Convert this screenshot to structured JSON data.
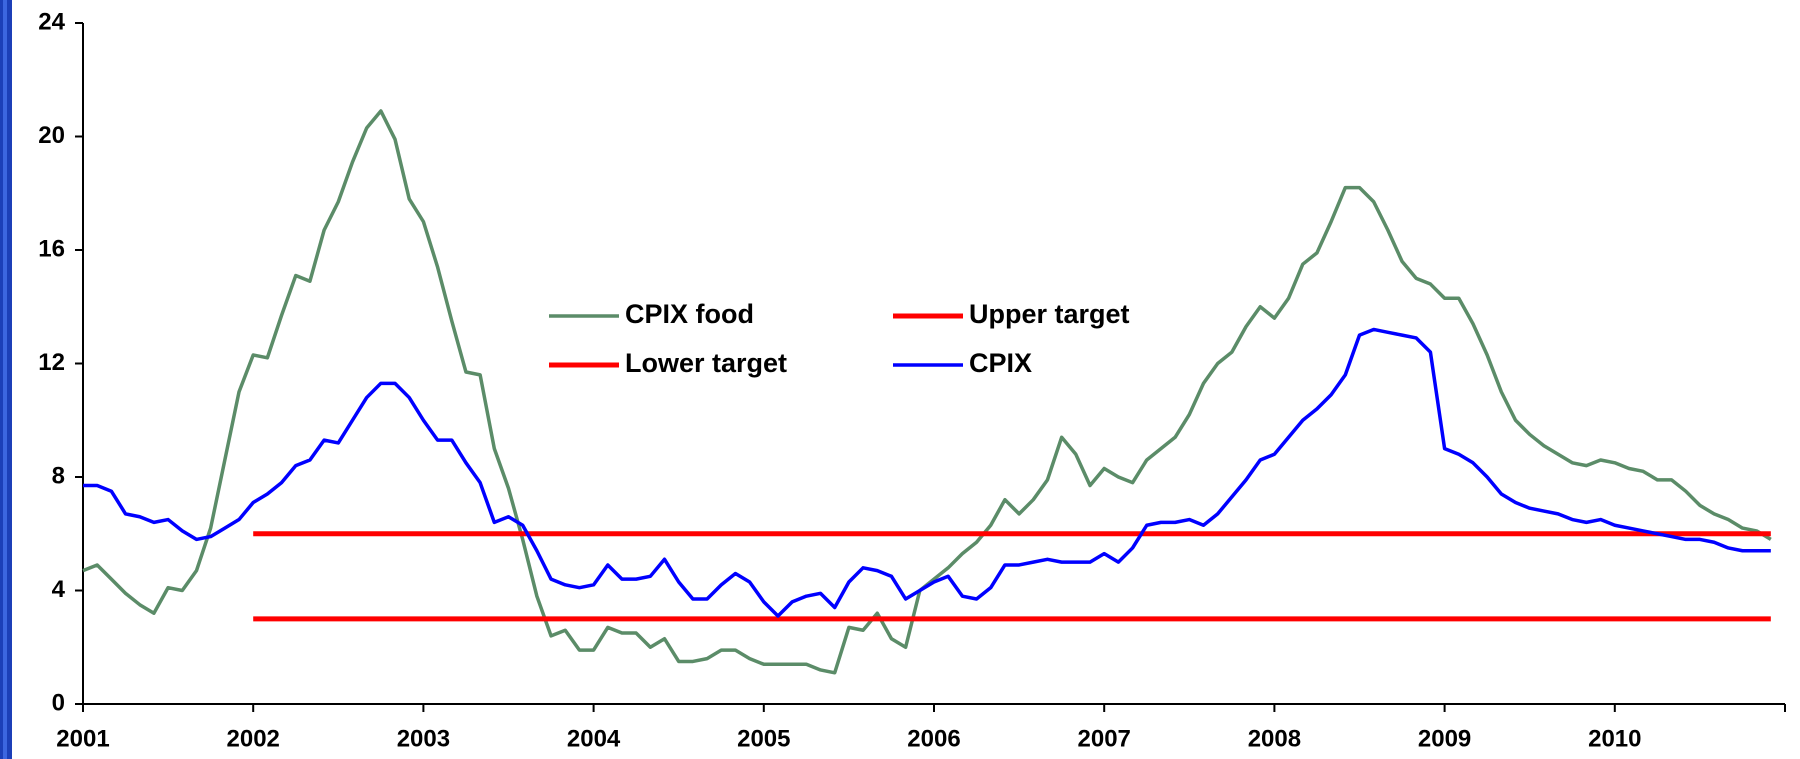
{
  "chart_data": {
    "type": "line",
    "categories": [
      "2001",
      null,
      null,
      null,
      null,
      null,
      null,
      null,
      null,
      null,
      null,
      null,
      "2002",
      null,
      null,
      null,
      null,
      null,
      null,
      null,
      null,
      null,
      null,
      null,
      "2003",
      null,
      null,
      null,
      null,
      null,
      null,
      null,
      null,
      null,
      null,
      null,
      "2004",
      null,
      null,
      null,
      null,
      null,
      null,
      null,
      null,
      null,
      null,
      null,
      "2005",
      null,
      null,
      null,
      null,
      null,
      null,
      null,
      null,
      null,
      null,
      null,
      "2006",
      null,
      null,
      null,
      null,
      null,
      null,
      null,
      null,
      null,
      null,
      null,
      "2007",
      null,
      null,
      null,
      null,
      null,
      null,
      null,
      null,
      null,
      null,
      null,
      "2008",
      null,
      null,
      null,
      null,
      null,
      null,
      null,
      null,
      null,
      null,
      null,
      "2009",
      null,
      null,
      null,
      null,
      null,
      null,
      null,
      null,
      null,
      null,
      null,
      "2010",
      null,
      null,
      null,
      null,
      null,
      null,
      null,
      null,
      null,
      null,
      null
    ],
    "series": [
      {
        "name": "CPIX food",
        "color": "#5b8c68",
        "values": [
          4.7,
          4.9,
          4.4,
          3.9,
          3.5,
          3.2,
          4.1,
          4.0,
          4.7,
          6.2,
          8.6,
          11.0,
          12.3,
          12.2,
          13.7,
          15.1,
          14.9,
          16.7,
          17.7,
          19.1,
          20.3,
          20.9,
          19.9,
          17.8,
          17.0,
          15.4,
          13.5,
          11.7,
          11.6,
          9.0,
          7.6,
          5.8,
          3.8,
          2.4,
          2.6,
          1.9,
          1.9,
          2.7,
          2.5,
          2.5,
          2.0,
          2.3,
          1.5,
          1.5,
          1.6,
          1.9,
          1.9,
          1.6,
          1.4,
          1.4,
          1.4,
          1.4,
          1.2,
          1.1,
          2.7,
          2.6,
          3.2,
          2.3,
          2.0,
          4.0,
          4.4,
          4.8,
          5.3,
          5.7,
          6.3,
          7.2,
          6.7,
          7.2,
          7.9,
          9.4,
          8.8,
          7.7,
          8.3,
          8.0,
          7.8,
          8.6,
          9.0,
          9.4,
          10.2,
          11.3,
          12.0,
          12.4,
          13.3,
          14.0,
          13.6,
          14.3,
          15.5,
          15.9,
          17.0,
          18.2,
          18.2,
          17.7,
          16.7,
          15.6,
          15.0,
          14.8,
          14.3,
          14.3,
          13.4,
          12.3,
          11.0,
          10.0,
          9.5,
          9.1,
          8.8,
          8.5,
          8.4,
          8.6,
          8.5,
          8.3,
          8.2,
          7.9,
          7.9,
          7.5,
          7.0,
          6.7,
          6.5,
          6.2,
          6.1,
          5.8
        ]
      },
      {
        "name": "Upper target",
        "color": "#ff0000",
        "values": [
          null,
          null,
          null,
          null,
          null,
          null,
          null,
          null,
          null,
          null,
          null,
          null,
          6,
          6,
          6,
          6,
          6,
          6,
          6,
          6,
          6,
          6,
          6,
          6,
          6,
          6,
          6,
          6,
          6,
          6,
          6,
          6,
          6,
          6,
          6,
          6,
          6,
          6,
          6,
          6,
          6,
          6,
          6,
          6,
          6,
          6,
          6,
          6,
          6,
          6,
          6,
          6,
          6,
          6,
          6,
          6,
          6,
          6,
          6,
          6,
          6,
          6,
          6,
          6,
          6,
          6,
          6,
          6,
          6,
          6,
          6,
          6,
          6,
          6,
          6,
          6,
          6,
          6,
          6,
          6,
          6,
          6,
          6,
          6,
          6,
          6,
          6,
          6,
          6,
          6,
          6,
          6,
          6,
          6,
          6,
          6,
          6,
          6,
          6,
          6,
          6,
          6,
          6,
          6,
          6,
          6,
          6,
          6,
          6,
          6,
          6,
          6,
          6,
          6,
          6,
          6,
          6,
          6,
          6,
          6
        ]
      },
      {
        "name": "Lower target",
        "color": "#ff0000",
        "values": [
          null,
          null,
          null,
          null,
          null,
          null,
          null,
          null,
          null,
          null,
          null,
          null,
          3,
          3,
          3,
          3,
          3,
          3,
          3,
          3,
          3,
          3,
          3,
          3,
          3,
          3,
          3,
          3,
          3,
          3,
          3,
          3,
          3,
          3,
          3,
          3,
          3,
          3,
          3,
          3,
          3,
          3,
          3,
          3,
          3,
          3,
          3,
          3,
          3,
          3,
          3,
          3,
          3,
          3,
          3,
          3,
          3,
          3,
          3,
          3,
          3,
          3,
          3,
          3,
          3,
          3,
          3,
          3,
          3,
          3,
          3,
          3,
          3,
          3,
          3,
          3,
          3,
          3,
          3,
          3,
          3,
          3,
          3,
          3,
          3,
          3,
          3,
          3,
          3,
          3,
          3,
          3,
          3,
          3,
          3,
          3,
          3,
          3,
          3,
          3,
          3,
          3,
          3,
          3,
          3,
          3,
          3,
          3,
          3,
          3,
          3,
          3,
          3,
          3,
          3,
          3,
          3,
          3,
          3,
          3
        ]
      },
      {
        "name": "CPIX",
        "color": "#0000ff",
        "values": [
          7.7,
          7.7,
          7.5,
          6.7,
          6.6,
          6.4,
          6.5,
          6.1,
          5.8,
          5.9,
          6.2,
          6.5,
          7.1,
          7.4,
          7.8,
          8.4,
          8.6,
          9.3,
          9.2,
          10.0,
          10.8,
          11.3,
          11.3,
          10.8,
          10.0,
          9.3,
          9.3,
          8.5,
          7.8,
          6.4,
          6.6,
          6.3,
          5.4,
          4.4,
          4.2,
          4.1,
          4.2,
          4.9,
          4.4,
          4.4,
          4.5,
          5.1,
          4.3,
          3.7,
          3.7,
          4.2,
          4.6,
          4.3,
          3.6,
          3.1,
          3.6,
          3.8,
          3.9,
          3.4,
          4.3,
          4.8,
          4.7,
          4.5,
          3.7,
          4.0,
          4.3,
          4.5,
          3.8,
          3.7,
          4.1,
          4.9,
          4.9,
          5.0,
          5.1,
          5.0,
          5.0,
          5.0,
          5.3,
          5.0,
          5.5,
          6.3,
          6.4,
          6.4,
          6.5,
          6.3,
          6.7,
          7.3,
          7.9,
          8.6,
          8.8,
          9.4,
          10.0,
          10.4,
          10.9,
          11.6,
          13.0,
          13.2,
          13.1,
          13.0,
          12.9,
          12.4,
          9.0,
          8.8,
          8.5,
          8.0,
          7.4,
          7.1,
          6.9,
          6.8,
          6.7,
          6.5,
          6.4,
          6.5,
          6.3,
          6.2,
          6.1,
          6.0,
          5.9,
          5.8,
          5.8,
          5.7,
          5.5,
          5.4,
          5.4,
          5.4
        ]
      }
    ],
    "ylim": [
      0,
      24
    ],
    "yticks": [
      0,
      4,
      8,
      12,
      16,
      20,
      24
    ],
    "grid": false
  }
}
